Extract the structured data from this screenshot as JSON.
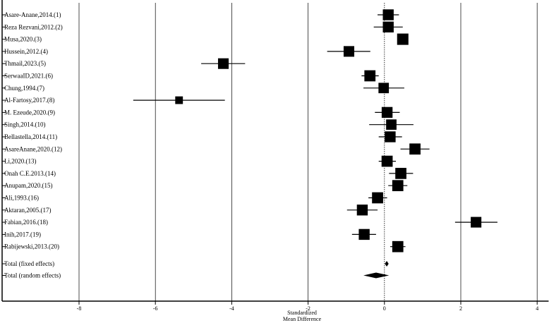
{
  "chart_data": {
    "type": "forest",
    "xlabel_line1": "Standardized",
    "xlabel_line2": "Mean Difference",
    "xlim": [
      -8.3,
      4.3
    ],
    "x_ticks": [
      -8,
      -6,
      -4,
      -2,
      0,
      2,
      4
    ],
    "grid": "vertical",
    "studies": [
      {
        "label": "Asare-Anane,2014.(1)",
        "estimate": 0.1,
        "ci": [
          -0.18,
          0.38
        ],
        "weight": 1.6
      },
      {
        "label": "Reza Rezvani,2012.(2)",
        "estimate": 0.1,
        "ci": [
          -0.28,
          0.48
        ],
        "weight": 1.6
      },
      {
        "label": "Musa,2020.(3)",
        "estimate": 0.48,
        "ci": [
          0.38,
          0.58
        ],
        "weight": 1.7
      },
      {
        "label": "Hussein,2012.(4)",
        "estimate": -0.93,
        "ci": [
          -1.5,
          -0.37
        ],
        "weight": 1.55
      },
      {
        "label": "Thmail,2023.(5)",
        "estimate": -4.22,
        "ci": [
          -4.8,
          -3.65
        ],
        "weight": 1.55
      },
      {
        "label": "SerwaaID,2021.(6)",
        "estimate": -0.38,
        "ci": [
          -0.6,
          -0.15
        ],
        "weight": 1.65
      },
      {
        "label": "Chung,1994.(7)",
        "estimate": -0.02,
        "ci": [
          -0.55,
          0.52
        ],
        "weight": 1.5
      },
      {
        "label": "Al-Fartosy,2017.(8)",
        "estimate": -5.38,
        "ci": [
          -6.58,
          -4.18
        ],
        "weight": 0.9
      },
      {
        "label": "M. Ezeude,2020.(9)",
        "estimate": 0.07,
        "ci": [
          -0.25,
          0.4
        ],
        "weight": 1.6
      },
      {
        "label": "Singh,2014.(10)",
        "estimate": 0.18,
        "ci": [
          -0.4,
          0.76
        ],
        "weight": 1.5
      },
      {
        "label": "Bellastella,2014.(11)",
        "estimate": 0.15,
        "ci": [
          -0.15,
          0.46
        ],
        "weight": 1.6
      },
      {
        "label": "AsareAnane,2020.(12)",
        "estimate": 0.8,
        "ci": [
          0.42,
          1.18
        ],
        "weight": 1.65
      },
      {
        "label": "Li,2020.(13)",
        "estimate": 0.07,
        "ci": [
          -0.15,
          0.3
        ],
        "weight": 1.65
      },
      {
        "label": "Onah C.E.2013.(14)",
        "estimate": 0.43,
        "ci": [
          0.12,
          0.75
        ],
        "weight": 1.65
      },
      {
        "label": "Anupam,2020.(15)",
        "estimate": 0.35,
        "ci": [
          0.1,
          0.6
        ],
        "weight": 1.65
      },
      {
        "label": "Ali,1993.(16)",
        "estimate": -0.18,
        "ci": [
          -0.42,
          0.07
        ],
        "weight": 1.65
      },
      {
        "label": "Aktaran,2005.(17)",
        "estimate": -0.58,
        "ci": [
          -0.98,
          -0.18
        ],
        "weight": 1.6
      },
      {
        "label": "Fabian,2016.(18)",
        "estimate": 2.4,
        "ci": [
          1.85,
          2.96
        ],
        "weight": 1.55
      },
      {
        "label": "Inih,2017.(19)",
        "estimate": -0.53,
        "ci": [
          -0.85,
          -0.22
        ],
        "weight": 1.6
      },
      {
        "label": "Rabijewski,2013.(20)",
        "estimate": 0.35,
        "ci": [
          0.15,
          0.55
        ],
        "weight": 1.65
      }
    ],
    "totals": [
      {
        "label": "Total (fixed effects)",
        "estimate": 0.06,
        "ci": [
          0.01,
          0.11
        ]
      },
      {
        "label": "Total (random effects)",
        "estimate": -0.22,
        "ci": [
          -0.55,
          0.12
        ]
      }
    ],
    "colors": {
      "ink": "#000000",
      "grid": "#000000",
      "background": "#ffffff"
    }
  }
}
